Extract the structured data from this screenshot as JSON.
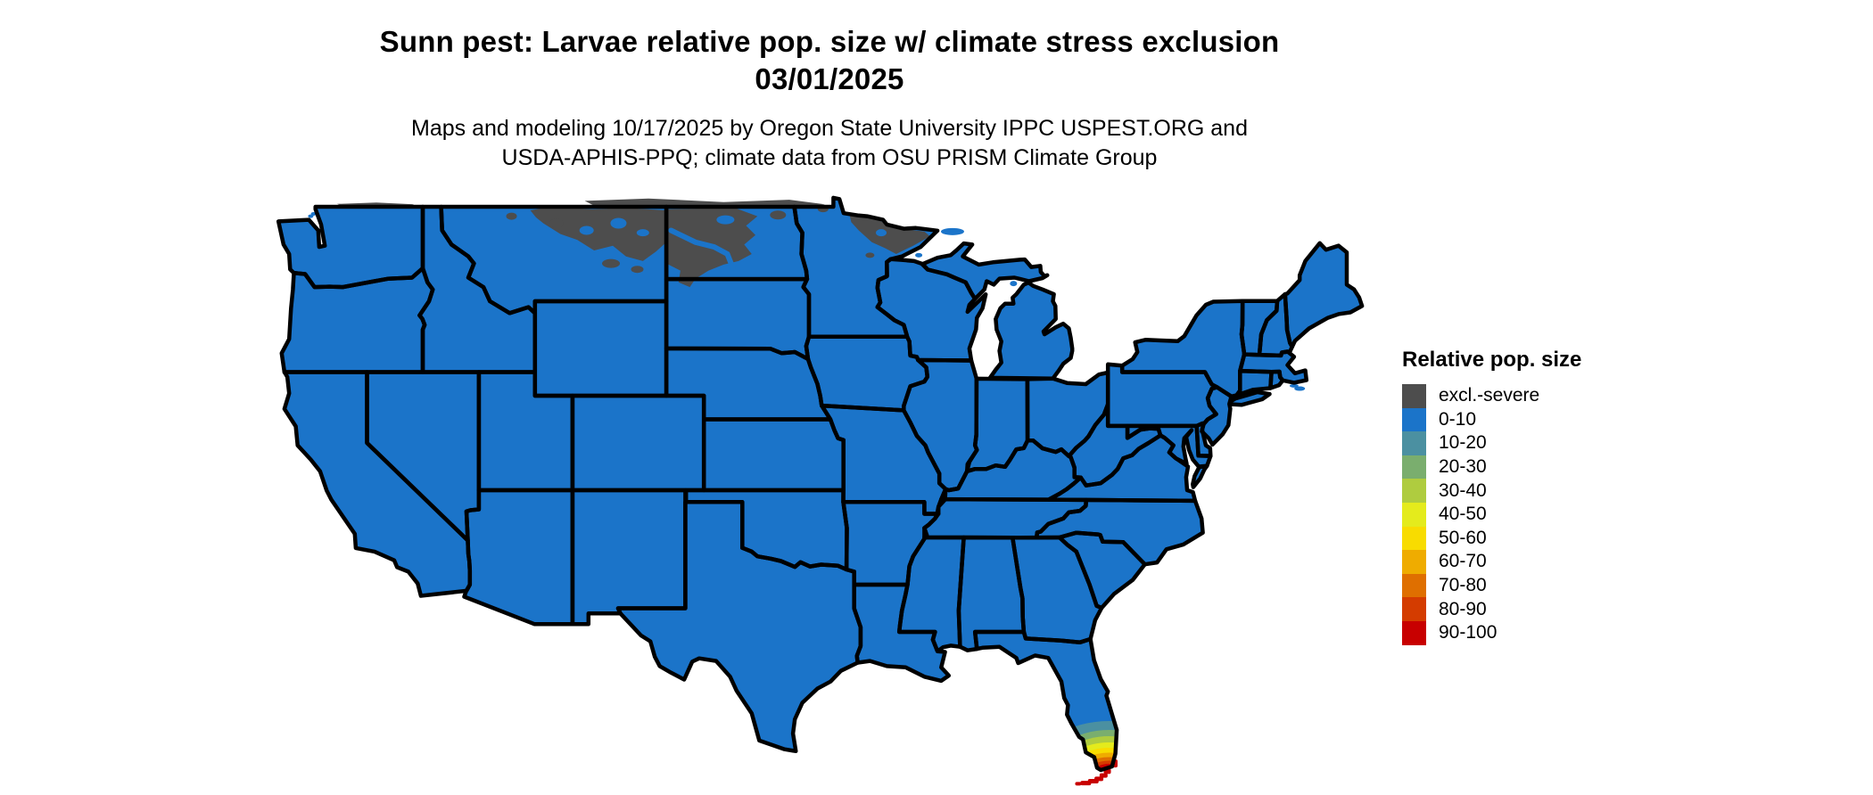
{
  "title": {
    "line1": "Sunn pest: Larvae relative pop. size w/ climate stress exclusion",
    "line2": "03/01/2025"
  },
  "subtitle": {
    "line1": "Maps and modeling 10/17/2025 by Oregon State University IPPC USPEST.ORG and",
    "line2": "USDA-APHIS-PPQ; climate data from OSU PRISM Climate Group"
  },
  "legend": {
    "title": "Relative pop. size",
    "items": [
      {
        "label": "excl.-severe",
        "color": "#4D4D4D"
      },
      {
        "label": "0-10",
        "color": "#1B74C9"
      },
      {
        "label": "10-20",
        "color": "#4B90A1"
      },
      {
        "label": "20-30",
        "color": "#7AAE6E"
      },
      {
        "label": "30-40",
        "color": "#AFCC3F"
      },
      {
        "label": "40-50",
        "color": "#E4EB1C"
      },
      {
        "label": "50-60",
        "color": "#F8DC00"
      },
      {
        "label": "60-70",
        "color": "#EFAC00"
      },
      {
        "label": "70-80",
        "color": "#DF6F00"
      },
      {
        "label": "80-90",
        "color": "#D43C00"
      },
      {
        "label": "90-100",
        "color": "#C80000"
      }
    ]
  },
  "map": {
    "background": "#FFFFFF",
    "border_color": "#000000",
    "land_category": "0-10",
    "excluded_category": "excl.-severe",
    "excluded_regions": [
      "eastern Montana",
      "western North Dakota",
      "northeastern Minnesota"
    ],
    "hotspot_region": "southern Florida",
    "hotspot_categories": [
      "10-20",
      "20-30",
      "30-40",
      "40-50",
      "50-60",
      "60-70",
      "70-80",
      "80-90",
      "90-100"
    ]
  }
}
